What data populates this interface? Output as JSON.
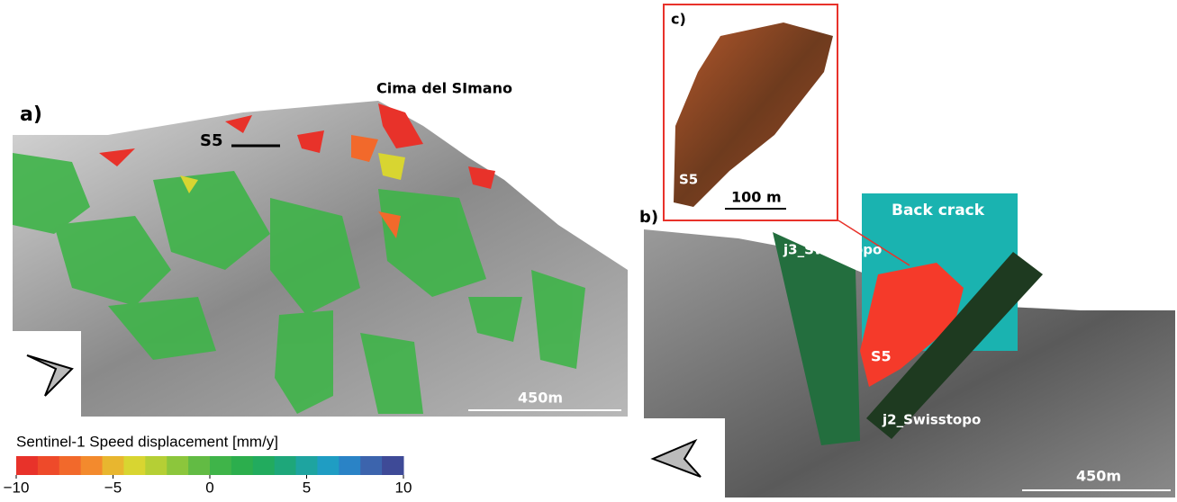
{
  "panel_a": {
    "label": "a)",
    "peak_label": "Cima del SImano",
    "point_label": "S5",
    "scale_label": "450m"
  },
  "panel_b": {
    "label": "b)",
    "planes": [
      "Back crack",
      "j3_Swisstopo",
      "j2_Swisstopo"
    ],
    "block_label": "S5",
    "scale_label": "450m"
  },
  "panel_c": {
    "label": "c)",
    "block_label": "S5",
    "scale_label": "100 m"
  },
  "colorbar": {
    "title": "Sentinel-1 Speed displacement [mm/y]",
    "range": [
      -10,
      10
    ],
    "ticks": [
      {
        "value": -10,
        "label": "−10"
      },
      {
        "value": -5,
        "label": "−5"
      },
      0,
      5,
      10
    ],
    "colors": [
      "#e8322a",
      "#ee4a2a",
      "#f2692b",
      "#f38a2d",
      "#e8b62f",
      "#d8d531",
      "#b5cf35",
      "#8cc63c",
      "#62bb44",
      "#3fb449",
      "#2cae4d",
      "#22ab5e",
      "#1ea77a",
      "#1ea4a0",
      "#1f9dc3",
      "#2a83c6",
      "#3c64ad",
      "#3e4a97"
    ]
  }
}
